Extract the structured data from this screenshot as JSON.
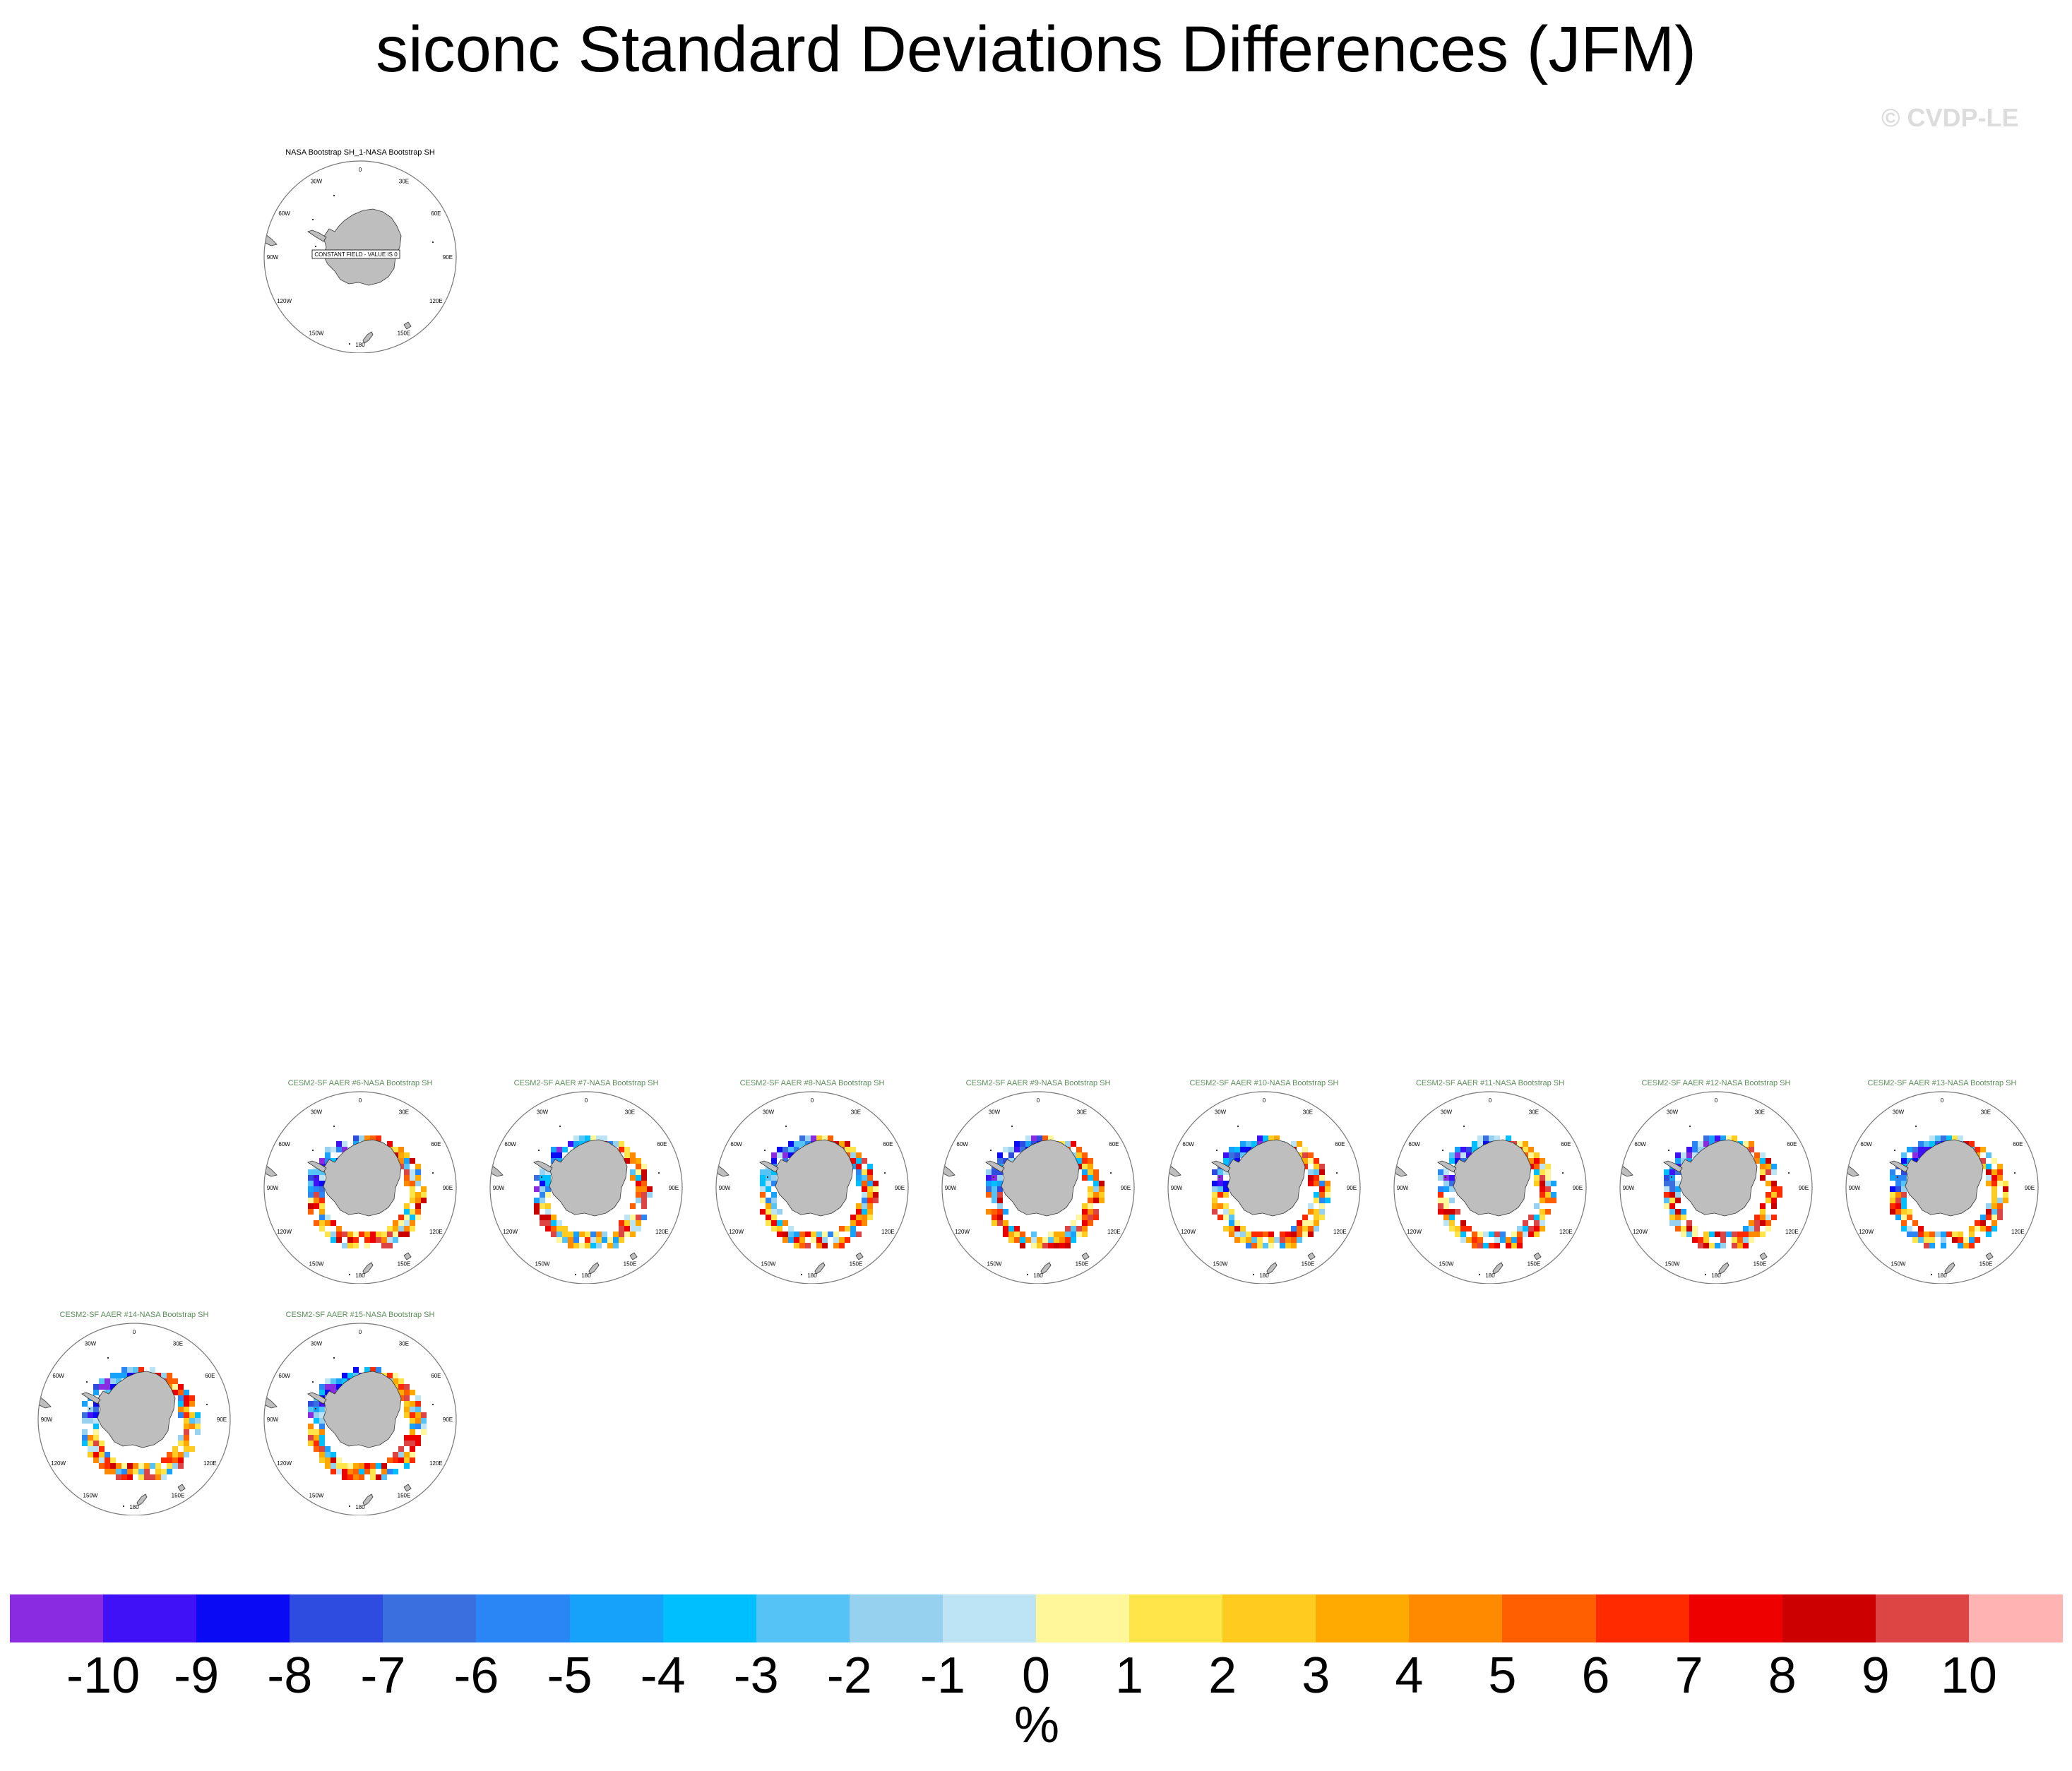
{
  "title": "siconc Standard Deviations Differences (JFM)",
  "watermark": "© CVDP-LE",
  "panels": [
    {
      "title": "NASA Bootstrap SH_1-NASA Bootstrap SH",
      "kind": "obs",
      "constant_label": "CONSTANT FIELD - VALUE IS 0"
    },
    {
      "title": "CESM2-SF AAER #6-NASA Bootstrap SH",
      "kind": "model"
    },
    {
      "title": "CESM2-SF AAER #7-NASA Bootstrap SH",
      "kind": "model"
    },
    {
      "title": "CESM2-SF AAER #8-NASA Bootstrap SH",
      "kind": "model"
    },
    {
      "title": "CESM2-SF AAER #9-NASA Bootstrap SH",
      "kind": "model"
    },
    {
      "title": "CESM2-SF AAER #10-NASA Bootstrap SH",
      "kind": "model"
    },
    {
      "title": "CESM2-SF AAER #11-NASA Bootstrap SH",
      "kind": "model"
    },
    {
      "title": "CESM2-SF AAER #12-NASA Bootstrap SH",
      "kind": "model"
    },
    {
      "title": "CESM2-SF AAER #13-NASA Bootstrap SH",
      "kind": "model"
    },
    {
      "title": "CESM2-SF AAER #14-NASA Bootstrap SH",
      "kind": "model"
    },
    {
      "title": "CESM2-SF AAER #15-NASA Bootstrap SH",
      "kind": "model"
    }
  ],
  "lon_labels": [
    "0",
    "30E",
    "60E",
    "90E",
    "120E",
    "150E",
    "180",
    "150W",
    "120W",
    "90W",
    "60W",
    "30W"
  ],
  "colorbar": {
    "colors": [
      "#8a2be2",
      "#4011f7",
      "#0a0af5",
      "#2e4ce0",
      "#3a6fe0",
      "#2a86f5",
      "#16a2fa",
      "#00bfff",
      "#55c3f5",
      "#96d2f0",
      "#bde4f5",
      "#fff79a",
      "#ffe44a",
      "#ffcb1f",
      "#ffaa00",
      "#ff8a00",
      "#ff5f00",
      "#ff2a00",
      "#ee0000",
      "#cc0000",
      "#dd4444",
      "#ffb3b3"
    ],
    "ticks": [
      "-10",
      "-9",
      "-8",
      "-7",
      "-6",
      "-5",
      "-4",
      "-3",
      "-2",
      "-1",
      "0",
      "1",
      "2",
      "3",
      "4",
      "5",
      "6",
      "7",
      "8",
      "9",
      "10"
    ],
    "units": "%"
  },
  "land_color": "#bebebe"
}
